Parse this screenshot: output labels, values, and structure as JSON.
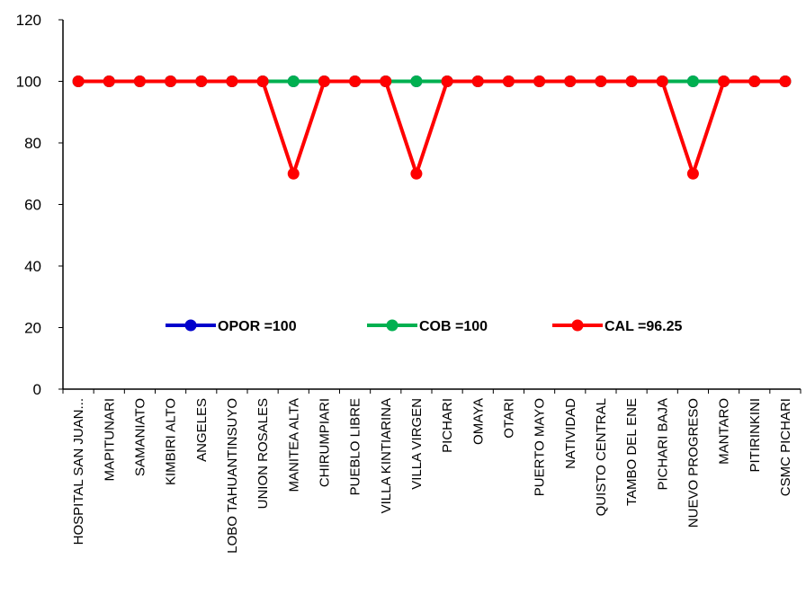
{
  "chart_data": {
    "type": "line",
    "categories": [
      "HOSPITAL SAN JUAN...",
      "MAPITUNARI",
      "SAMANIATO",
      "KIMBIRI ALTO",
      "ANGELES",
      "LOBO TAHUANTINSUYO",
      "UNION ROSALES",
      "MANITEA ALTA",
      "CHIRUMPIARI",
      "PUEBLO LIBRE",
      "VILLA KINTIARINA",
      "VILLA VIRGEN",
      "PICHARI",
      "OMAYA",
      "OTARI",
      "PUERTO MAYO",
      "NATIVIDAD",
      "QUISTO CENTRAL",
      "TAMBO DEL ENE",
      "PICHARI BAJA",
      "NUEVO PROGRESO",
      "MANTARO",
      "PITIRINKINI",
      "CSMC PICHARI"
    ],
    "series": [
      {
        "name": "OPOR =100",
        "color": "#0000cc",
        "values": [
          100,
          100,
          100,
          100,
          100,
          100,
          100,
          100,
          100,
          100,
          100,
          100,
          100,
          100,
          100,
          100,
          100,
          100,
          100,
          100,
          100,
          100,
          100,
          100
        ]
      },
      {
        "name": "COB =100",
        "color": "#00b050",
        "values": [
          100,
          100,
          100,
          100,
          100,
          100,
          100,
          100,
          100,
          100,
          100,
          100,
          100,
          100,
          100,
          100,
          100,
          100,
          100,
          100,
          100,
          100,
          100,
          100
        ]
      },
      {
        "name": "CAL =96.25",
        "color": "#ff0000",
        "values": [
          100,
          100,
          100,
          100,
          100,
          100,
          100,
          70,
          100,
          100,
          100,
          70,
          100,
          100,
          100,
          100,
          100,
          100,
          100,
          100,
          70,
          100,
          100,
          100
        ]
      }
    ],
    "ylim": [
      0,
      120
    ],
    "yticks": [
      "0",
      "20",
      "40",
      "60",
      "80",
      "100",
      "120"
    ],
    "grid": false,
    "legend_position": "inside-bottom"
  }
}
